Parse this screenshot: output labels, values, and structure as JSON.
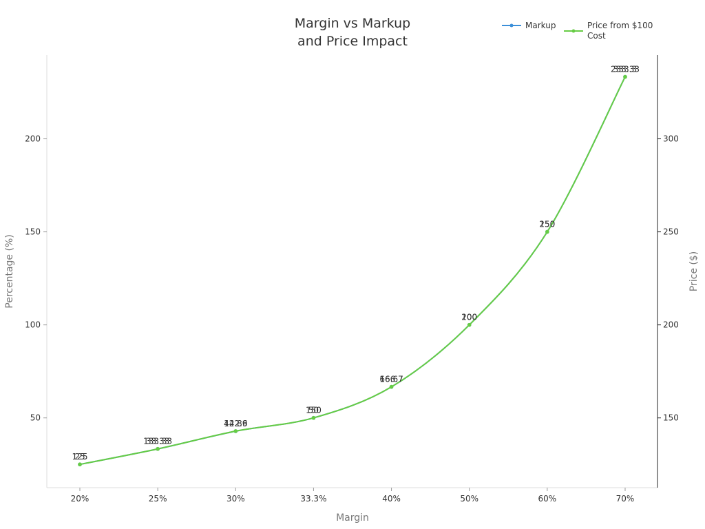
{
  "chart_data": {
    "type": "line",
    "title_lines": [
      "Margin vs Markup",
      "and Price Impact"
    ],
    "xlabel": "Margin",
    "ylabel": "Percentage (%)",
    "y2label": "Price ($)",
    "categories": [
      "20%",
      "25%",
      "30%",
      "33.3%",
      "40%",
      "50%",
      "60%",
      "70%"
    ],
    "ylim": [
      12.5,
      245
    ],
    "y2lim": [
      112.5,
      345
    ],
    "yticks": [
      50,
      100,
      150,
      200
    ],
    "y2ticks": [
      150,
      200,
      250,
      300
    ],
    "legend_placement": "top-right",
    "grid": false,
    "series": [
      {
        "name": "Markup",
        "axis": "left",
        "color": "#3b8fd9",
        "values": [
          25,
          33.33,
          42.86,
          50,
          66.67,
          100,
          150,
          233.33
        ],
        "value_labels": [
          "25",
          "33.33",
          "42.86",
          "50",
          "66.67",
          "100",
          "150",
          "233.33"
        ]
      },
      {
        "name": "Price from $100\nCost",
        "legend_lines": [
          "Price from $100",
          "Cost"
        ],
        "axis": "right",
        "color": "#66cc44",
        "values": [
          125,
          133.33,
          142.9,
          150,
          166.7,
          200,
          250,
          333.3
        ],
        "value_labels": [
          "125",
          "133.33",
          "142.9",
          "150",
          "166.7",
          "200",
          "250",
          "333.3"
        ]
      }
    ]
  }
}
